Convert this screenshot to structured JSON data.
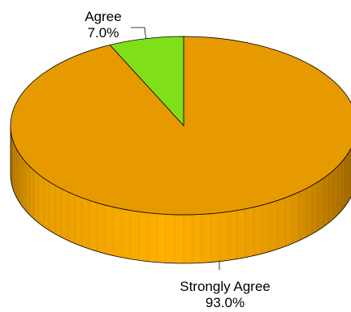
{
  "chart_data": {
    "type": "pie",
    "style": "3d",
    "title": "",
    "slices": [
      {
        "name": "Strongly Agree",
        "value": 93.0,
        "label": "93.0%",
        "color": "#E69A00"
      },
      {
        "name": "Agree",
        "value": 7.0,
        "label": "7.0%",
        "color": "#7FE01A"
      }
    ],
    "legend": "none",
    "data_labels": "outside-with-leader-lines"
  }
}
